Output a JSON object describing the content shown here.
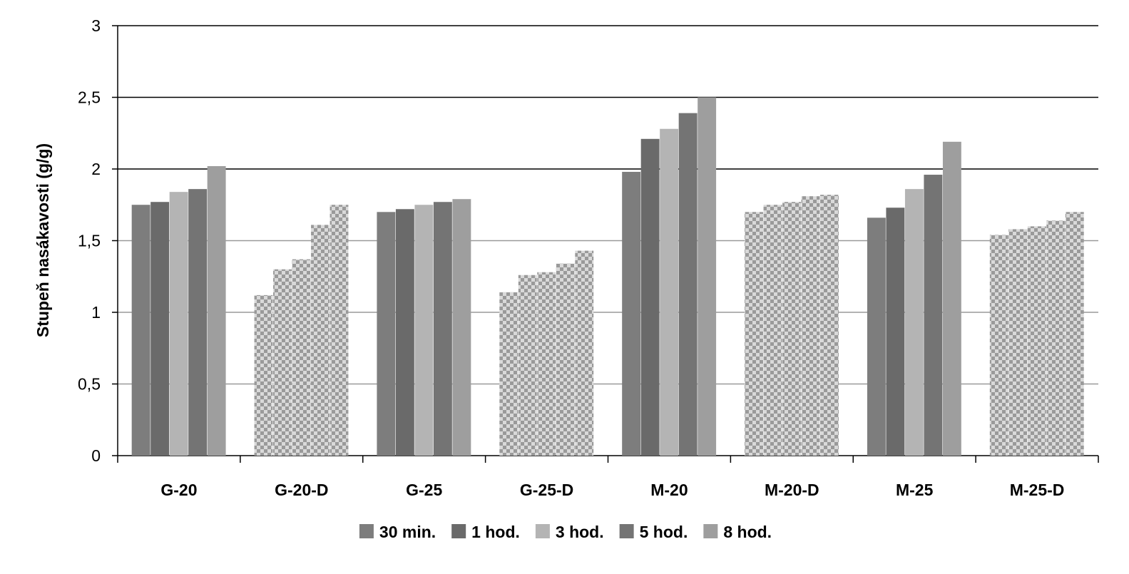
{
  "chart_data": {
    "type": "bar",
    "title": "",
    "xlabel": "",
    "ylabel": "Stupeň nasákavosti (g/g)",
    "ylim": [
      0,
      3
    ],
    "yticks": [
      "0",
      "0,5",
      "1",
      "1,5",
      "2",
      "2,5",
      "3"
    ],
    "grid": true,
    "legend_position": "bottom",
    "categories": [
      "G-20",
      "G-20-D",
      "G-25",
      "G-25-D",
      "M-20",
      "M-20-D",
      "M-25",
      "M-25-D"
    ],
    "patterned_categories": [
      "G-20-D",
      "G-25-D",
      "M-20-D",
      "M-25-D"
    ],
    "series": [
      {
        "name": "30 min.",
        "color": "#7d7d7d",
        "values": [
          1.75,
          1.12,
          1.7,
          1.14,
          1.98,
          1.7,
          1.66,
          1.54
        ]
      },
      {
        "name": "1 hod.",
        "color": "#6a6a6a",
        "values": [
          1.77,
          1.3,
          1.72,
          1.26,
          2.21,
          1.75,
          1.73,
          1.58
        ]
      },
      {
        "name": "3 hod.",
        "color": "#b4b4b4",
        "values": [
          1.84,
          1.37,
          1.75,
          1.28,
          2.28,
          1.77,
          1.86,
          1.6
        ]
      },
      {
        "name": "5 hod.",
        "color": "#747474",
        "values": [
          1.86,
          1.61,
          1.77,
          1.34,
          2.39,
          1.81,
          1.96,
          1.64
        ]
      },
      {
        "name": "8 hod.",
        "color": "#9e9e9e",
        "values": [
          2.02,
          1.75,
          1.79,
          1.43,
          2.5,
          1.82,
          2.19,
          1.7
        ]
      }
    ]
  }
}
